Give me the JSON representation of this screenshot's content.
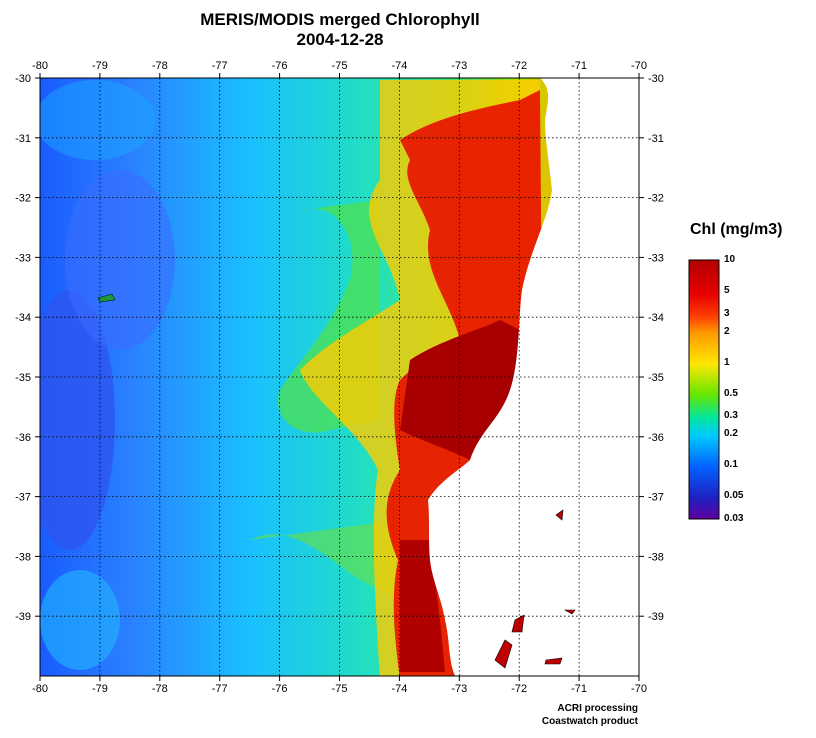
{
  "title": "MERIS/MODIS merged Chlorophyll",
  "date": "2004-12-28",
  "map": {
    "lon_range": [
      -80,
      -70
    ],
    "lat_range": [
      -40,
      -30
    ],
    "lon_ticks": [
      "-80",
      "-79",
      "-78",
      "-77",
      "-76",
      "-75",
      "-74",
      "-73",
      "-72",
      "-71",
      "-70"
    ],
    "lat_ticks": [
      "-30",
      "-31",
      "-32",
      "-33",
      "-34",
      "-35",
      "-36",
      "-37",
      "-38",
      "-39"
    ],
    "grid": "dotted every 1 degree",
    "land_color": "#ffffff"
  },
  "legend": {
    "title": "Chl (mg/m3)",
    "labels": [
      "10",
      "5",
      "3",
      "2",
      "1",
      "0.5",
      "0.3",
      "0.2",
      "0.1",
      "0.05",
      "0.03"
    ],
    "colors": [
      "#b30000",
      "#e00000",
      "#ff4000",
      "#ff9900",
      "#ffe600",
      "#66e600",
      "#00e6a0",
      "#00c8ff",
      "#0060ff",
      "#2020c0",
      "#6000a0"
    ]
  },
  "credit": {
    "line1": "ACRI processing",
    "line2": "Coastwatch product"
  }
}
